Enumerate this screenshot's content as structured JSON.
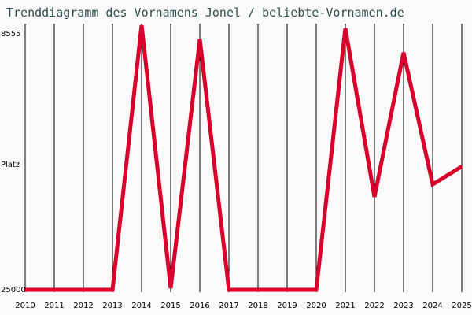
{
  "chart_data": {
    "type": "line",
    "title": "Trenddiagramm des Vornamens Jonel / beliebte-Vornamen.de",
    "xlabel": "",
    "ylabel": "Platz",
    "y_inverted": true,
    "ylim": [
      8555,
      25000
    ],
    "y_ticks": [
      "8555",
      "Platz",
      "25000"
    ],
    "categories": [
      "2010",
      "2011",
      "2012",
      "2013",
      "2014",
      "2015",
      "2016",
      "2017",
      "2018",
      "2019",
      "2020",
      "2021",
      "2022",
      "2023",
      "2024",
      "2025"
    ],
    "series": [
      {
        "name": "Jonel",
        "color": "#d9002b",
        "values": [
          25000,
          25000,
          25000,
          25000,
          8050,
          24900,
          8950,
          25000,
          25000,
          25000,
          25000,
          8250,
          19050,
          9800,
          18250,
          17100
        ]
      }
    ],
    "grid": "vertical",
    "legend": "none"
  },
  "colors": {
    "background": "#fafafa",
    "title": "#2f4f4f",
    "line": "#d9002b",
    "grid": "#000000"
  }
}
